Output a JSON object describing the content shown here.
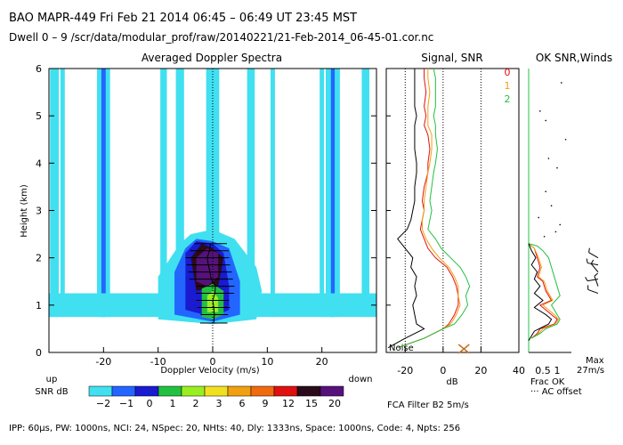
{
  "header": {
    "line1": "BAO   MAPR-449   Fri Feb 21 2014 06:45 – 06:49 UT 23:45 MST",
    "line2": "Dwell   0 –   9    /scr/data/modular_prof/raw/20140221/21-Feb-2014_06-45-01.cor.nc"
  },
  "chart_data": [
    {
      "type": "heatmap",
      "title": "Averaged Doppler Spectra",
      "xlabel": "Doppler Velocity (m/s)",
      "ylabel": "Height (km)",
      "xlim": [
        -30,
        30
      ],
      "ylim": [
        0,
        6
      ],
      "x_ticks": [
        -20,
        -10,
        0,
        10,
        20
      ],
      "y_ticks": [
        0,
        1,
        2,
        3,
        4,
        5,
        6
      ],
      "x_end_labels": {
        "left": "up",
        "right": "down"
      },
      "colorbar": {
        "label": "SNR dB",
        "ticks": [
          "−2",
          "−1",
          "0",
          "1",
          "2",
          "3",
          "6",
          "9",
          "12",
          "15",
          "20"
        ],
        "colors": [
          "#40e0f0",
          "#2266ff",
          "#1a1ad0",
          "#23c040",
          "#99ee22",
          "#f0e020",
          "#f0a010",
          "#f06a10",
          "#e01010",
          "#2a0b1a",
          "#55127a"
        ]
      },
      "vertical_bands": [
        {
          "x": -29,
          "top": 6,
          "color": "#40e0f0",
          "width": 1.6
        },
        {
          "x": -27.5,
          "top": 6,
          "color": "#40e0f0",
          "width": 0.8
        },
        {
          "x": -20,
          "top": 6,
          "color": "#40e0f0",
          "width": 2.4
        },
        {
          "x": -20,
          "top": 6,
          "color": "#2266ff",
          "width": 0.8
        },
        {
          "x": -9,
          "top": 6,
          "color": "#40e0f0",
          "width": 1.2
        },
        {
          "x": -6,
          "top": 6,
          "color": "#40e0f0",
          "width": 1.5
        },
        {
          "x": 0,
          "top": 6,
          "color": "#40e0f0",
          "width": 2.4
        },
        {
          "x": 7,
          "top": 6,
          "color": "#40e0f0",
          "width": 1.4
        },
        {
          "x": 11,
          "top": 6,
          "color": "#40e0f0",
          "width": 0.8
        },
        {
          "x": 20,
          "top": 6,
          "color": "#40e0f0",
          "width": 0.8
        },
        {
          "x": 22,
          "top": 6,
          "color": "#40e0f0",
          "width": 2.6
        },
        {
          "x": 22,
          "top": 6,
          "color": "#2266ff",
          "width": 0.7
        },
        {
          "x": 28,
          "top": 6,
          "color": "#40e0f0",
          "width": 1.4
        }
      ],
      "base_layer": {
        "height_range": [
          0.75,
          1.25
        ],
        "color": "#40e0f0"
      },
      "echo_contours": [
        {
          "snr": -2,
          "color": "#40e0f0",
          "points": [
            [
              -10,
              0.7
            ],
            [
              -10,
              1.6
            ],
            [
              -6,
              2.3
            ],
            [
              -4,
              2.5
            ],
            [
              0,
              2.6
            ],
            [
              4,
              2.4
            ],
            [
              8,
              1.8
            ],
            [
              9,
              1.3
            ],
            [
              8,
              0.7
            ],
            [
              0,
              0.6
            ]
          ]
        },
        {
          "snr": -1,
          "color": "#2266ff",
          "points": [
            [
              -7,
              0.8
            ],
            [
              -7,
              1.7
            ],
            [
              -5,
              2.2
            ],
            [
              -3,
              2.4
            ],
            [
              0,
              2.35
            ],
            [
              3,
              2.2
            ],
            [
              5,
              1.5
            ],
            [
              5,
              0.8
            ],
            [
              0,
              0.65
            ]
          ]
        },
        {
          "snr": 0,
          "color": "#1a1ad0",
          "points": [
            [
              -5,
              0.9
            ],
            [
              -5,
              2.1
            ],
            [
              -3,
              2.35
            ],
            [
              0,
              2.3
            ],
            [
              2,
              2.1
            ],
            [
              3,
              1.4
            ],
            [
              3,
              0.9
            ],
            [
              0,
              0.75
            ]
          ]
        },
        {
          "snr": 15,
          "color": "#2a0b1a",
          "points": [
            [
              -3,
              1.3
            ],
            [
              -4,
              2.0
            ],
            [
              -2,
              2.3
            ],
            [
              0,
              2.2
            ],
            [
              2,
              2.0
            ],
            [
              1,
              1.4
            ]
          ]
        },
        {
          "snr": 20,
          "color": "#55127a",
          "points": [
            [
              -3,
              1.5
            ],
            [
              -3,
              2.0
            ],
            [
              -1,
              2.2
            ],
            [
              1,
              2.1
            ],
            [
              1,
              1.6
            ],
            [
              -1,
              1.4
            ]
          ]
        },
        {
          "snr": 1,
          "color": "#23c040",
          "points": [
            [
              -2,
              0.75
            ],
            [
              -2,
              1.35
            ],
            [
              0,
              1.45
            ],
            [
              2,
              1.3
            ],
            [
              2,
              0.8
            ],
            [
              0,
              0.7
            ]
          ]
        },
        {
          "snr": 2,
          "color": "#99ee22",
          "points": [
            [
              -1,
              0.85
            ],
            [
              -1,
              1.2
            ],
            [
              0,
              1.3
            ],
            [
              1,
              1.15
            ],
            [
              1,
              0.85
            ]
          ]
        }
      ],
      "zero_line": 0,
      "moment_markers": [
        {
          "height": 0.62,
          "velocity": 0.2,
          "width": 5
        },
        {
          "height": 0.8,
          "velocity": 0.3,
          "width": 5
        },
        {
          "height": 0.95,
          "velocity": 0.2,
          "width": 6
        },
        {
          "height": 1.1,
          "velocity": 0.0,
          "width": 6
        },
        {
          "height": 1.25,
          "velocity": 0.4,
          "width": 7
        },
        {
          "height": 1.4,
          "velocity": 0.5,
          "width": 7
        },
        {
          "height": 1.55,
          "velocity": -0.3,
          "width": 8
        },
        {
          "height": 1.7,
          "velocity": -0.5,
          "width": 8
        },
        {
          "height": 1.85,
          "velocity": -0.8,
          "width": 8
        },
        {
          "height": 2.0,
          "velocity": -1.0,
          "width": 8
        },
        {
          "height": 2.15,
          "velocity": -0.6,
          "width": 7
        },
        {
          "height": 2.3,
          "velocity": -0.4,
          "width": 6
        }
      ]
    },
    {
      "type": "line",
      "title": "Signal, SNR",
      "xlabel": "dB",
      "xlim": [
        -30,
        40
      ],
      "ylim": [
        0,
        6
      ],
      "x_ticks": [
        -20,
        0,
        20,
        40
      ],
      "dotted_lines_x": [
        -20,
        0,
        20
      ],
      "noise_label": "Noise",
      "series": [
        {
          "name": "0",
          "color": "#e01010",
          "x": [
            -10,
            -10,
            -9,
            -10,
            -9,
            -10,
            -8,
            -7,
            -8,
            -8,
            -10,
            -11,
            -10,
            -11,
            -12,
            -10,
            -8,
            -4,
            2,
            5,
            7,
            8,
            8,
            6,
            3,
            0,
            -10,
            -24
          ],
          "y": [
            6.0,
            5.8,
            5.5,
            5.2,
            5.0,
            4.8,
            4.6,
            4.3,
            4.0,
            3.8,
            3.5,
            3.2,
            3.0,
            2.8,
            2.6,
            2.4,
            2.2,
            2.0,
            1.8,
            1.6,
            1.4,
            1.2,
            1.0,
            0.8,
            0.6,
            0.5,
            0.3,
            0.1
          ]
        },
        {
          "name": "1",
          "color": "#f0a010",
          "x": [
            -8,
            -8,
            -7,
            -8,
            -8,
            -8,
            -6,
            -6,
            -7,
            -8,
            -9,
            -10,
            -10,
            -11,
            -11,
            -9,
            -6,
            -2,
            3,
            6,
            8,
            8,
            9,
            7,
            4,
            0,
            -10,
            -24
          ],
          "y": [
            6.0,
            5.8,
            5.5,
            5.2,
            5.0,
            4.8,
            4.6,
            4.3,
            4.0,
            3.8,
            3.5,
            3.2,
            3.0,
            2.8,
            2.6,
            2.4,
            2.2,
            2.0,
            1.8,
            1.6,
            1.4,
            1.2,
            1.0,
            0.8,
            0.6,
            0.5,
            0.3,
            0.1
          ]
        },
        {
          "name": "2",
          "color": "#23c040",
          "x": [
            -5,
            -4,
            -4,
            -4,
            -5,
            -4,
            -4,
            -3,
            -4,
            -5,
            -6,
            -7,
            -6,
            -7,
            -8,
            -4,
            -1,
            4,
            9,
            12,
            14,
            12,
            13,
            10,
            6,
            0,
            -10,
            -24
          ],
          "y": [
            6.0,
            5.8,
            5.5,
            5.2,
            5.0,
            4.8,
            4.6,
            4.3,
            4.0,
            3.8,
            3.5,
            3.2,
            3.0,
            2.8,
            2.6,
            2.4,
            2.2,
            2.0,
            1.8,
            1.6,
            1.4,
            1.2,
            1.0,
            0.8,
            0.6,
            0.5,
            0.3,
            0.1
          ]
        },
        {
          "name": "Noise",
          "color": "#000000",
          "x": [
            -15,
            -15,
            -15,
            -15,
            -14,
            -15,
            -15,
            -15,
            -14,
            -14,
            -15,
            -15,
            -16,
            -17,
            -19,
            -24,
            -20,
            -16,
            -17,
            -14,
            -15,
            -14,
            -16,
            -15,
            -14,
            -10,
            -20,
            -29
          ],
          "y": [
            6.0,
            5.8,
            5.5,
            5.2,
            5.0,
            4.8,
            4.6,
            4.3,
            4.0,
            3.8,
            3.5,
            3.2,
            3.0,
            2.8,
            2.6,
            2.4,
            2.2,
            2.0,
            1.8,
            1.6,
            1.4,
            1.2,
            1.0,
            0.8,
            0.6,
            0.5,
            0.3,
            0.1
          ]
        }
      ],
      "cross_marker": {
        "x": 11,
        "y": 0.0
      }
    },
    {
      "type": "line",
      "title": "OK SNR,Winds",
      "xlabel": "Frac OK",
      "xlim": [
        0,
        1.5
      ],
      "ylim": [
        0,
        6
      ],
      "x_ticks": [
        "0.5",
        "1"
      ],
      "footer_note": "··· AC offset",
      "max_label": "Max",
      "max_value_label": "27m/s",
      "legend_labels": [
        {
          "text": "0",
          "color": "#e01010"
        },
        {
          "text": "1",
          "color": "#f0a010"
        },
        {
          "text": "2",
          "color": "#23c040"
        }
      ],
      "series": [
        {
          "name": "0",
          "color": "#e01010",
          "x": [
            0.0,
            0.2,
            0.3,
            0.4,
            0.3,
            0.5,
            0.6,
            0.8,
            0.4,
            0.6,
            0.8,
            1.0,
            0.9,
            0.4,
            0.3,
            0.1
          ],
          "y": [
            2.3,
            2.2,
            2.0,
            1.8,
            1.6,
            1.5,
            1.3,
            1.1,
            1.0,
            0.9,
            0.8,
            0.7,
            0.6,
            0.5,
            0.4,
            0.3
          ]
        },
        {
          "name": "1",
          "color": "#f0a010",
          "x": [
            0.0,
            0.2,
            0.35,
            0.45,
            0.35,
            0.55,
            0.65,
            0.85,
            0.5,
            0.7,
            0.9,
            1.05,
            0.95,
            0.5,
            0.35,
            0.1
          ],
          "y": [
            2.3,
            2.2,
            2.0,
            1.8,
            1.6,
            1.5,
            1.3,
            1.1,
            1.0,
            0.9,
            0.8,
            0.7,
            0.6,
            0.5,
            0.4,
            0.3
          ]
        },
        {
          "name": "2",
          "color": "#23c040",
          "x": [
            0.0,
            0.3,
            0.5,
            0.7,
            0.8,
            0.9,
            1.0,
            1.1,
            0.8,
            0.9,
            1.0,
            1.1,
            1.0,
            0.6,
            0.4,
            0.1
          ],
          "y": [
            2.3,
            2.25,
            2.15,
            2.0,
            1.8,
            1.6,
            1.4,
            1.2,
            1.0,
            0.9,
            0.8,
            0.7,
            0.6,
            0.5,
            0.4,
            0.3
          ]
        },
        {
          "name": "Noise",
          "color": "#000000",
          "x": [
            0.0,
            0.1,
            0.25,
            0.1,
            0.3,
            0.2,
            0.4,
            0.2,
            0.5,
            0.2,
            0.6,
            0.8,
            0.7,
            0.2,
            0.1,
            0.0
          ],
          "y": [
            2.3,
            2.15,
            2.0,
            1.85,
            1.7,
            1.55,
            1.4,
            1.25,
            1.1,
            0.95,
            0.8,
            0.7,
            0.6,
            0.45,
            0.35,
            0.25
          ]
        }
      ],
      "wind_barbs": [
        {
          "height": 2.0,
          "speed_ms": 12,
          "direction_deg": 300
        },
        {
          "height": 1.85,
          "speed_ms": 10,
          "direction_deg": 280
        },
        {
          "height": 1.7,
          "speed_ms": 8,
          "direction_deg": 320
        },
        {
          "height": 1.55,
          "speed_ms": 7,
          "direction_deg": 260
        },
        {
          "height": 1.4,
          "speed_ms": 9,
          "direction_deg": 340
        },
        {
          "height": 1.25,
          "speed_ms": 6,
          "direction_deg": 290
        }
      ],
      "scatter_dots": [
        {
          "x": 0.4,
          "y": 5.1
        },
        {
          "x": 0.6,
          "y": 4.9
        },
        {
          "x": 1.3,
          "y": 4.5
        },
        {
          "x": 0.7,
          "y": 4.1
        },
        {
          "x": 1.0,
          "y": 3.9
        },
        {
          "x": 0.6,
          "y": 3.4
        },
        {
          "x": 0.8,
          "y": 3.1
        },
        {
          "x": 0.35,
          "y": 2.85
        },
        {
          "x": 1.1,
          "y": 2.7
        },
        {
          "x": 0.95,
          "y": 2.55
        },
        {
          "x": 0.55,
          "y": 2.45
        },
        {
          "x": 1.15,
          "y": 5.7
        }
      ]
    }
  ],
  "footer": {
    "filter": "FCA Filter B2   5m/s",
    "params": "IPP:  60µs,   PW: 1000ns,   NCI:  24,   NSpec: 20,   NHts: 40,   Dly: 1333ns,   Space: 1000ns,   Code: 4,   Npts: 256"
  }
}
